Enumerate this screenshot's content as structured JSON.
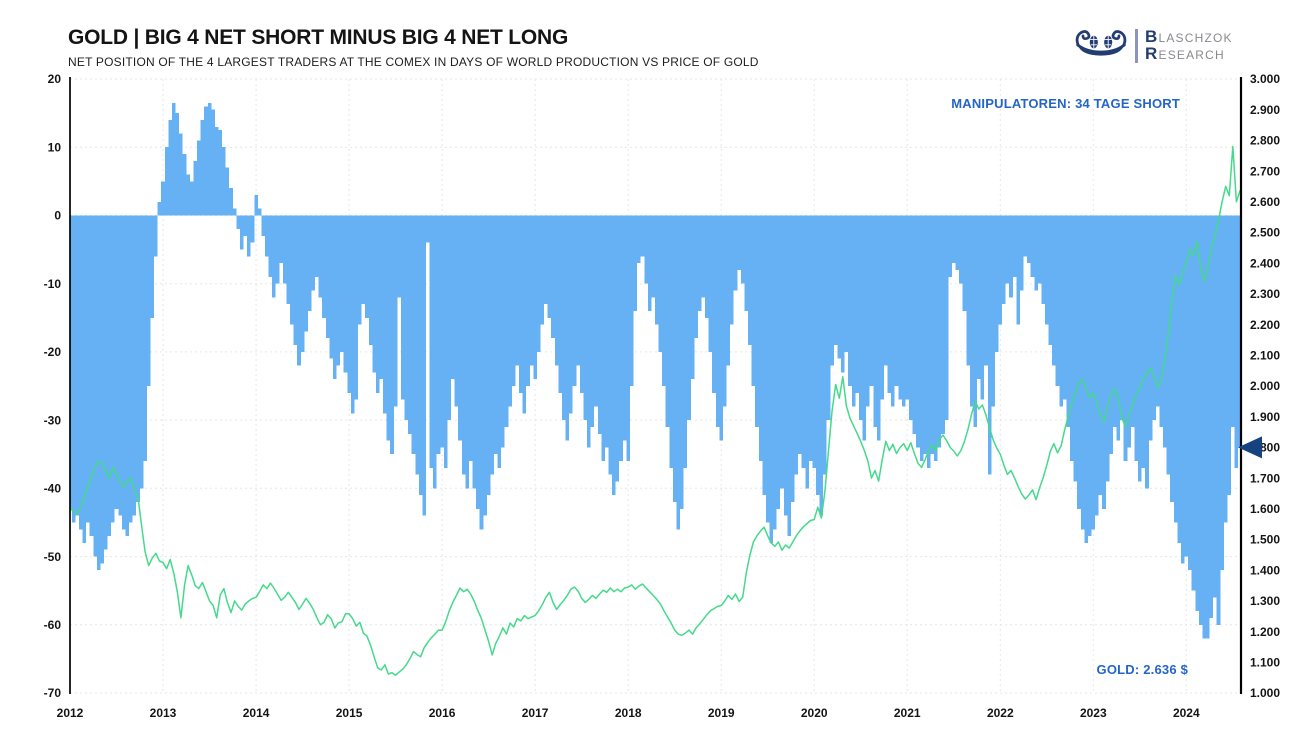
{
  "header": {
    "title": "GOLD | BIG 4 NET SHORT MINUS BIG 4 NET LONG",
    "subtitle": "NET POSITION OF THE 4 LARGEST TRADERS AT THE COMEX IN DAYS OF WORLD PRODUCTION VS PRICE OF GOLD"
  },
  "logo": {
    "line1_cap": "B",
    "line1_rest": "LASCHZOK",
    "line2_cap": "R",
    "line2_rest": "ESEARCH",
    "navy": "#243c74"
  },
  "annotations": {
    "manipulators_label": "MANIPULATOREN: 34 TAGE SHORT",
    "gold_label": "GOLD: 2.636 $",
    "accent_blue": "#2565c7"
  },
  "marker": {
    "value_days": -34,
    "color": "#16437f"
  },
  "chart_data": {
    "type": "mixed",
    "title": "GOLD | BIG 4 NET SHORT MINUS BIG 4 NET LONG",
    "subtitle": "NET POSITION OF THE 4 LARGEST TRADERS AT THE COMEX IN DAYS OF WORLD PRODUCTION VS PRICE OF GOLD",
    "x_start": 2012.0,
    "x_step_years": 0.0384615,
    "x_axis": {
      "ticks": [
        "2012",
        "2013",
        "2014",
        "2015",
        "2016",
        "2017",
        "2018",
        "2019",
        "2020",
        "2021",
        "2022",
        "2023",
        "2024"
      ]
    },
    "left_axis": {
      "min": -70,
      "max": 20,
      "ticks": [
        20,
        10,
        0,
        -10,
        -20,
        -30,
        -40,
        -50,
        -60,
        -70
      ]
    },
    "right_axis": {
      "min": 1000,
      "max": 3000,
      "tick_labels": [
        "3.000",
        "2.900",
        "2.800",
        "2.700",
        "2.600",
        "2.500",
        "2.400",
        "2.300",
        "2.200",
        "2.100",
        "2.000",
        "1.900",
        "1.800",
        "1.700",
        "1.600",
        "1.500",
        "1.400",
        "1.300",
        "1.200",
        "1.100",
        "1.000"
      ]
    },
    "grid": true,
    "legend": "none",
    "series": [
      {
        "name": "net-position-days",
        "type": "bar",
        "axis": "left",
        "color": "#66b0f4",
        "values": [
          -43,
          -45,
          -44,
          -46,
          -48,
          -45,
          -47,
          -50,
          -52,
          -51,
          -49,
          -47,
          -45,
          -43,
          -44,
          -46,
          -47,
          -45,
          -44,
          -42,
          -40,
          -36,
          -25,
          -15,
          -6,
          2,
          5,
          10,
          14,
          16.5,
          15,
          12,
          9,
          6,
          5,
          8,
          11,
          14,
          16,
          16.5,
          15.5,
          13,
          12.5,
          10,
          7,
          4,
          1,
          -2,
          -5,
          -3,
          -6,
          -4,
          3,
          1,
          -3,
          -6,
          -9,
          -12,
          -10,
          -7,
          -10,
          -13,
          -16,
          -19,
          -22,
          -20,
          -17,
          -14,
          -11,
          -9,
          -12,
          -15,
          -18,
          -21,
          -24,
          -22,
          -20,
          -23,
          -26,
          -29,
          -27,
          -16,
          -13,
          -15,
          -19,
          -23,
          -26,
          -24,
          -29,
          -33,
          -35,
          -28,
          -12,
          -27,
          -30,
          -32,
          -35,
          -38,
          -41,
          -44,
          -4,
          -37,
          -40,
          -35,
          -34,
          -37,
          -30,
          -24,
          -28,
          -33,
          -38,
          -40,
          -36,
          -40,
          -43,
          -46,
          -44,
          -41,
          -38,
          -35,
          -37,
          -34,
          -31,
          -28,
          -25,
          -22,
          -26,
          -29,
          -25,
          -22,
          -24,
          -20,
          -16,
          -13,
          -15,
          -18,
          -22,
          -26,
          -30,
          -33,
          -29,
          -25,
          -22,
          -26,
          -30,
          -34,
          -31,
          -28,
          -32,
          -36,
          -34,
          -38,
          -41,
          -39,
          -36,
          -33,
          -36,
          -25,
          -14,
          -7,
          -6,
          -10,
          -14,
          -12,
          -16,
          -20,
          -25,
          -31,
          -37,
          -42,
          -46,
          -43,
          -37,
          -30,
          -24,
          -18,
          -14,
          -12,
          -15,
          -20,
          -26,
          -31,
          -33,
          -28,
          -22,
          -16,
          -11,
          -8,
          -10,
          -14,
          -19,
          -25,
          -31,
          -36,
          -41,
          -45,
          -48,
          -46,
          -43,
          -40,
          -44,
          -47,
          -42,
          -38,
          -35,
          -37,
          -40,
          -36,
          -37,
          -41,
          -44,
          -38,
          -30,
          -22,
          -19,
          -21,
          -23,
          -20,
          -25,
          -28,
          -26,
          -30,
          -33,
          -28,
          -25,
          -31,
          -33,
          -27,
          -22,
          -26,
          -28,
          -25,
          -27,
          -28,
          -27,
          -30,
          -32,
          -34,
          -36,
          -35,
          -37,
          -35,
          -36,
          -34,
          -32,
          -30,
          -9,
          -7,
          -8,
          -10,
          -14,
          -22,
          -28,
          -31,
          -24,
          -27,
          -22,
          -38,
          -28,
          -20,
          -16,
          -13,
          -10,
          -12,
          -9,
          -16,
          -11,
          -6,
          -7,
          -9,
          -11,
          -10,
          -13,
          -16,
          -19,
          -22,
          -25,
          -28,
          -27,
          -31,
          -36,
          -39,
          -43,
          -46,
          -48,
          -47,
          -46,
          -44,
          -41,
          -43,
          -39,
          -35,
          -31,
          -33,
          -30,
          -36,
          -34,
          -31,
          -36,
          -39,
          -37,
          -40,
          -33,
          -30,
          -28,
          -31,
          -34,
          -38,
          -42,
          -45,
          -48,
          -51,
          -50,
          -52,
          -55,
          -58,
          -60,
          -62,
          -62,
          -59,
          -56,
          -60,
          -52,
          -45,
          -41,
          -31,
          -37,
          -34
        ]
      },
      {
        "name": "gold-price-usd",
        "type": "line",
        "axis": "right",
        "color": "#45d98c",
        "values": [
          1600,
          1592,
          1585,
          1605,
          1640,
          1672,
          1705,
          1735,
          1755,
          1748,
          1722,
          1700,
          1735,
          1712,
          1690,
          1672,
          1688,
          1700,
          1660,
          1638,
          1545,
          1460,
          1415,
          1440,
          1455,
          1430,
          1425,
          1405,
          1435,
          1390,
          1330,
          1245,
          1350,
          1415,
          1385,
          1350,
          1340,
          1360,
          1330,
          1300,
          1285,
          1245,
          1320,
          1340,
          1295,
          1262,
          1300,
          1282,
          1270,
          1290,
          1300,
          1308,
          1312,
          1330,
          1352,
          1340,
          1358,
          1342,
          1322,
          1302,
          1312,
          1328,
          1312,
          1295,
          1272,
          1290,
          1308,
          1292,
          1272,
          1245,
          1222,
          1230,
          1255,
          1242,
          1212,
          1228,
          1232,
          1258,
          1258,
          1242,
          1218,
          1230,
          1195,
          1185,
          1155,
          1118,
          1082,
          1075,
          1092,
          1062,
          1066,
          1058,
          1068,
          1078,
          1092,
          1112,
          1135,
          1125,
          1118,
          1148,
          1165,
          1180,
          1192,
          1205,
          1205,
          1232,
          1268,
          1295,
          1318,
          1342,
          1330,
          1338,
          1322,
          1298,
          1268,
          1242,
          1205,
          1168,
          1124,
          1162,
          1185,
          1212,
          1192,
          1228,
          1215,
          1242,
          1235,
          1252,
          1242,
          1248,
          1252,
          1268,
          1288,
          1312,
          1328,
          1295,
          1272,
          1288,
          1302,
          1318,
          1338,
          1345,
          1332,
          1308,
          1295,
          1305,
          1318,
          1308,
          1322,
          1335,
          1328,
          1342,
          1330,
          1338,
          1330,
          1342,
          1345,
          1352,
          1338,
          1348,
          1355,
          1342,
          1330,
          1318,
          1305,
          1290,
          1268,
          1248,
          1228,
          1205,
          1192,
          1188,
          1195,
          1205,
          1192,
          1212,
          1225,
          1240,
          1255,
          1268,
          1275,
          1282,
          1285,
          1300,
          1318,
          1305,
          1322,
          1298,
          1312,
          1390,
          1448,
          1492,
          1512,
          1528,
          1540,
          1512,
          1488,
          1478,
          1492,
          1465,
          1482,
          1472,
          1492,
          1512,
          1528,
          1542,
          1552,
          1562,
          1565,
          1605,
          1570,
          1660,
          1790,
          1920,
          2005,
          1960,
          2030,
          1935,
          1895,
          1870,
          1845,
          1820,
          1790,
          1755,
          1700,
          1725,
          1690,
          1760,
          1820,
          1790,
          1810,
          1780,
          1800,
          1812,
          1790,
          1815,
          1780,
          1748,
          1735,
          1760,
          1790,
          1810,
          1788,
          1825,
          1840,
          1822,
          1800,
          1788,
          1772,
          1790,
          1820,
          1860,
          1910,
          1950,
          1925,
          1938,
          1905,
          1865,
          1825,
          1798,
          1778,
          1742,
          1712,
          1725,
          1700,
          1672,
          1648,
          1632,
          1645,
          1662,
          1630,
          1668,
          1702,
          1742,
          1788,
          1812,
          1782,
          1805,
          1858,
          1902,
          1942,
          1975,
          2012,
          2022,
          1992,
          1962,
          1978,
          1942,
          1905,
          1882,
          1932,
          1972,
          1992,
          1962,
          1895,
          1868,
          1905,
          1942,
          1972,
          1992,
          2022,
          2042,
          2058,
          2032,
          1995,
          2020,
          2085,
          2170,
          2280,
          2360,
          2330,
          2370,
          2400,
          2445,
          2425,
          2470,
          2390,
          2340,
          2385,
          2450,
          2490,
          2540,
          2600,
          2650,
          2620,
          2780,
          2600,
          2636
        ]
      }
    ]
  }
}
